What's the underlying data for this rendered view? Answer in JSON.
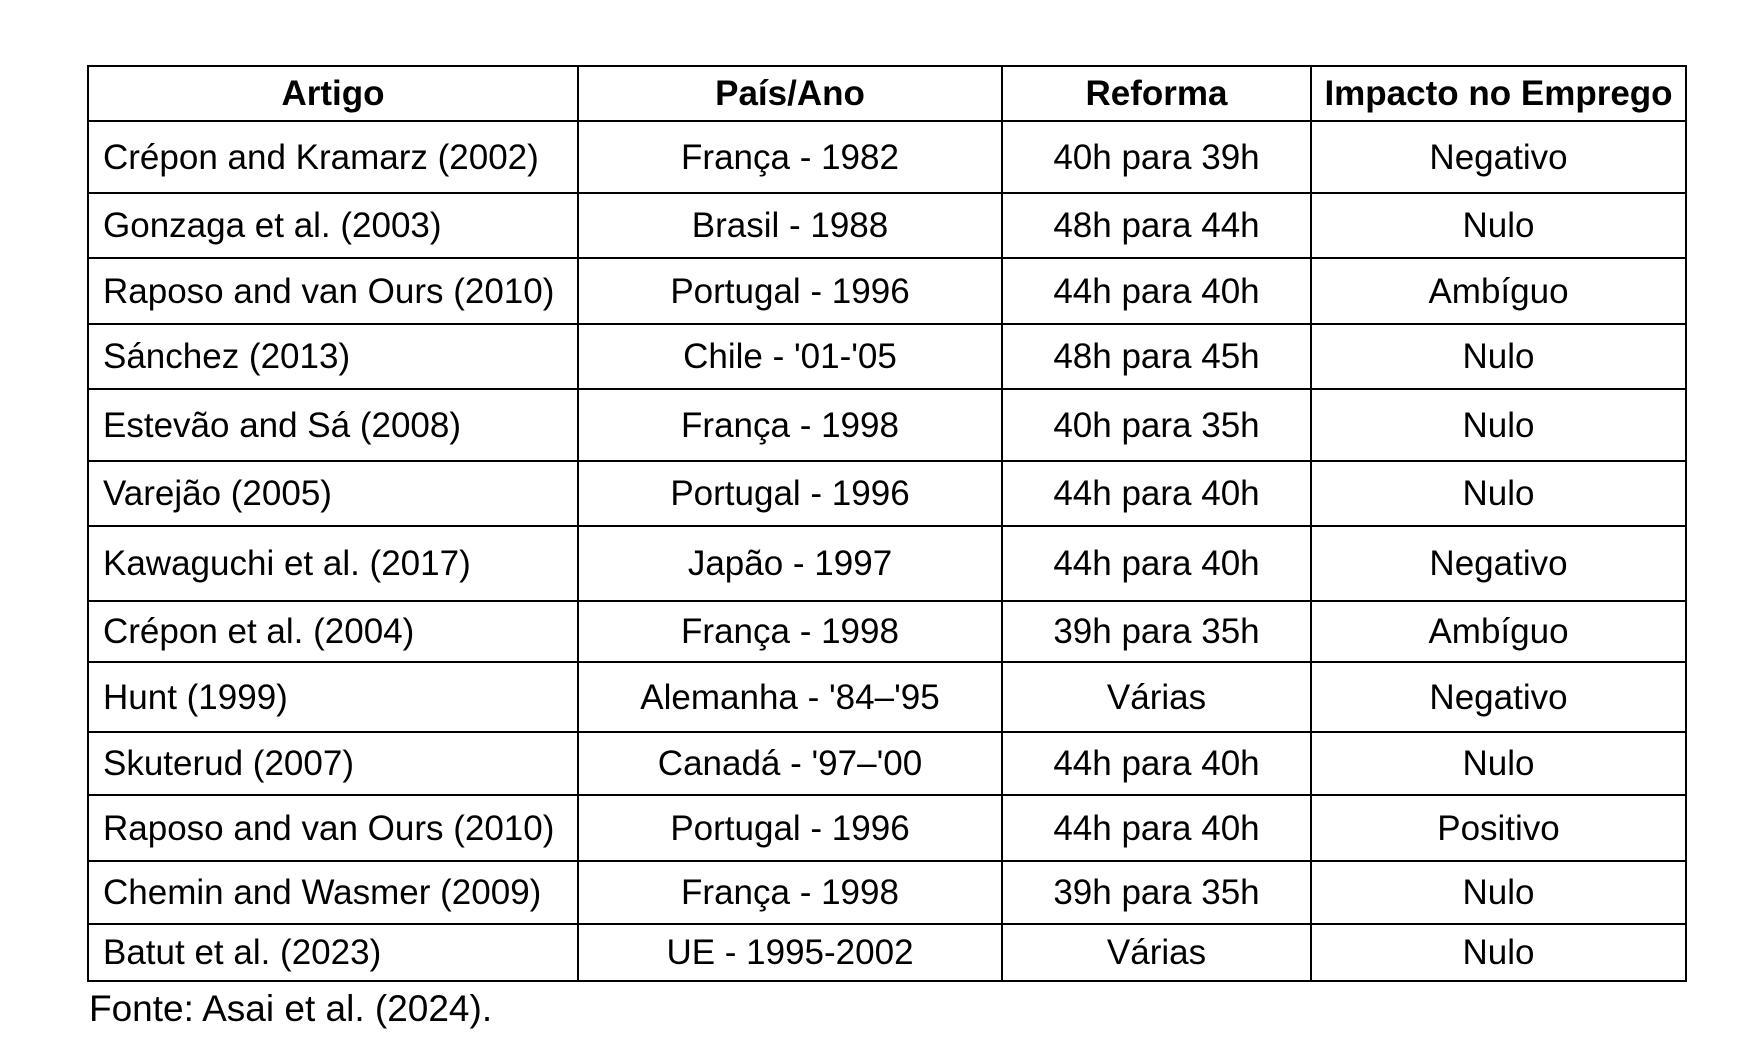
{
  "table": {
    "headers": [
      "Artigo",
      "País/Ano",
      "Reforma",
      "Impacto no Emprego"
    ],
    "rows": [
      [
        "Crépon and Kramarz (2002)",
        "França - 1982",
        "40h para 39h",
        "Negativo"
      ],
      [
        "Gonzaga et al. (2003)",
        "Brasil - 1988",
        "48h para 44h",
        "Nulo"
      ],
      [
        "Raposo and van Ours (2010)",
        "Portugal - 1996",
        "44h para 40h",
        "Ambíguo"
      ],
      [
        "Sánchez (2013)",
        "Chile - '01-'05",
        "48h para 45h",
        "Nulo"
      ],
      [
        "Estevão and Sá (2008)",
        "França - 1998",
        "40h para 35h",
        "Nulo"
      ],
      [
        "Varejão (2005)",
        "Portugal - 1996",
        "44h para 40h",
        "Nulo"
      ],
      [
        "Kawaguchi et al. (2017)",
        "Japão - 1997",
        "44h para 40h",
        "Negativo"
      ],
      [
        "Crépon et al. (2004)",
        "França - 1998",
        "39h para 35h",
        "Ambíguo"
      ],
      [
        "Hunt (1999)",
        "Alemanha - '84–'95",
        "Várias",
        "Negativo"
      ],
      [
        "Skuterud (2007)",
        "Canadá - '97–'00",
        "44h para 40h",
        "Nulo"
      ],
      [
        "Raposo and van Ours (2010)",
        "Portugal - 1996",
        "44h para 40h",
        "Positivo"
      ],
      [
        "Chemin and Wasmer (2009)",
        "França - 1998",
        "39h para 35h",
        "Nulo"
      ],
      [
        "Batut et al. (2023)",
        "UE - 1995-2002",
        "Várias",
        "Nulo"
      ]
    ]
  },
  "source": "Fonte: Asai et al. (2024)."
}
